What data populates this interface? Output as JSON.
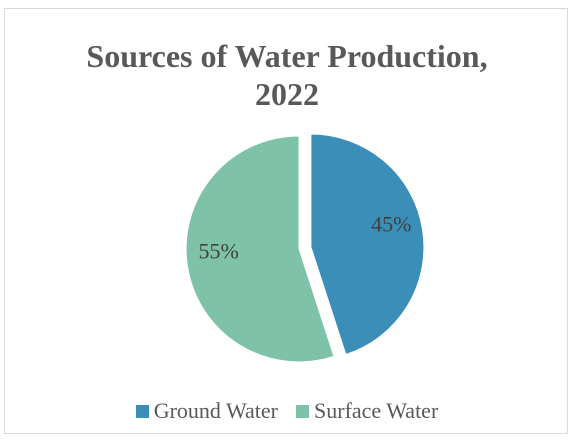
{
  "chart_data": {
    "type": "pie",
    "title_lines": [
      "Sources of Water Production,",
      "2022"
    ],
    "slices": [
      {
        "name": "Ground Water",
        "value": 45,
        "label": "45%",
        "color": "#3b8eb8"
      },
      {
        "name": "Surface Water",
        "value": 55,
        "label": "55%",
        "color": "#7ec3a8"
      }
    ],
    "start_angle_deg": 0,
    "legend_position": "bottom",
    "exploded": true
  }
}
